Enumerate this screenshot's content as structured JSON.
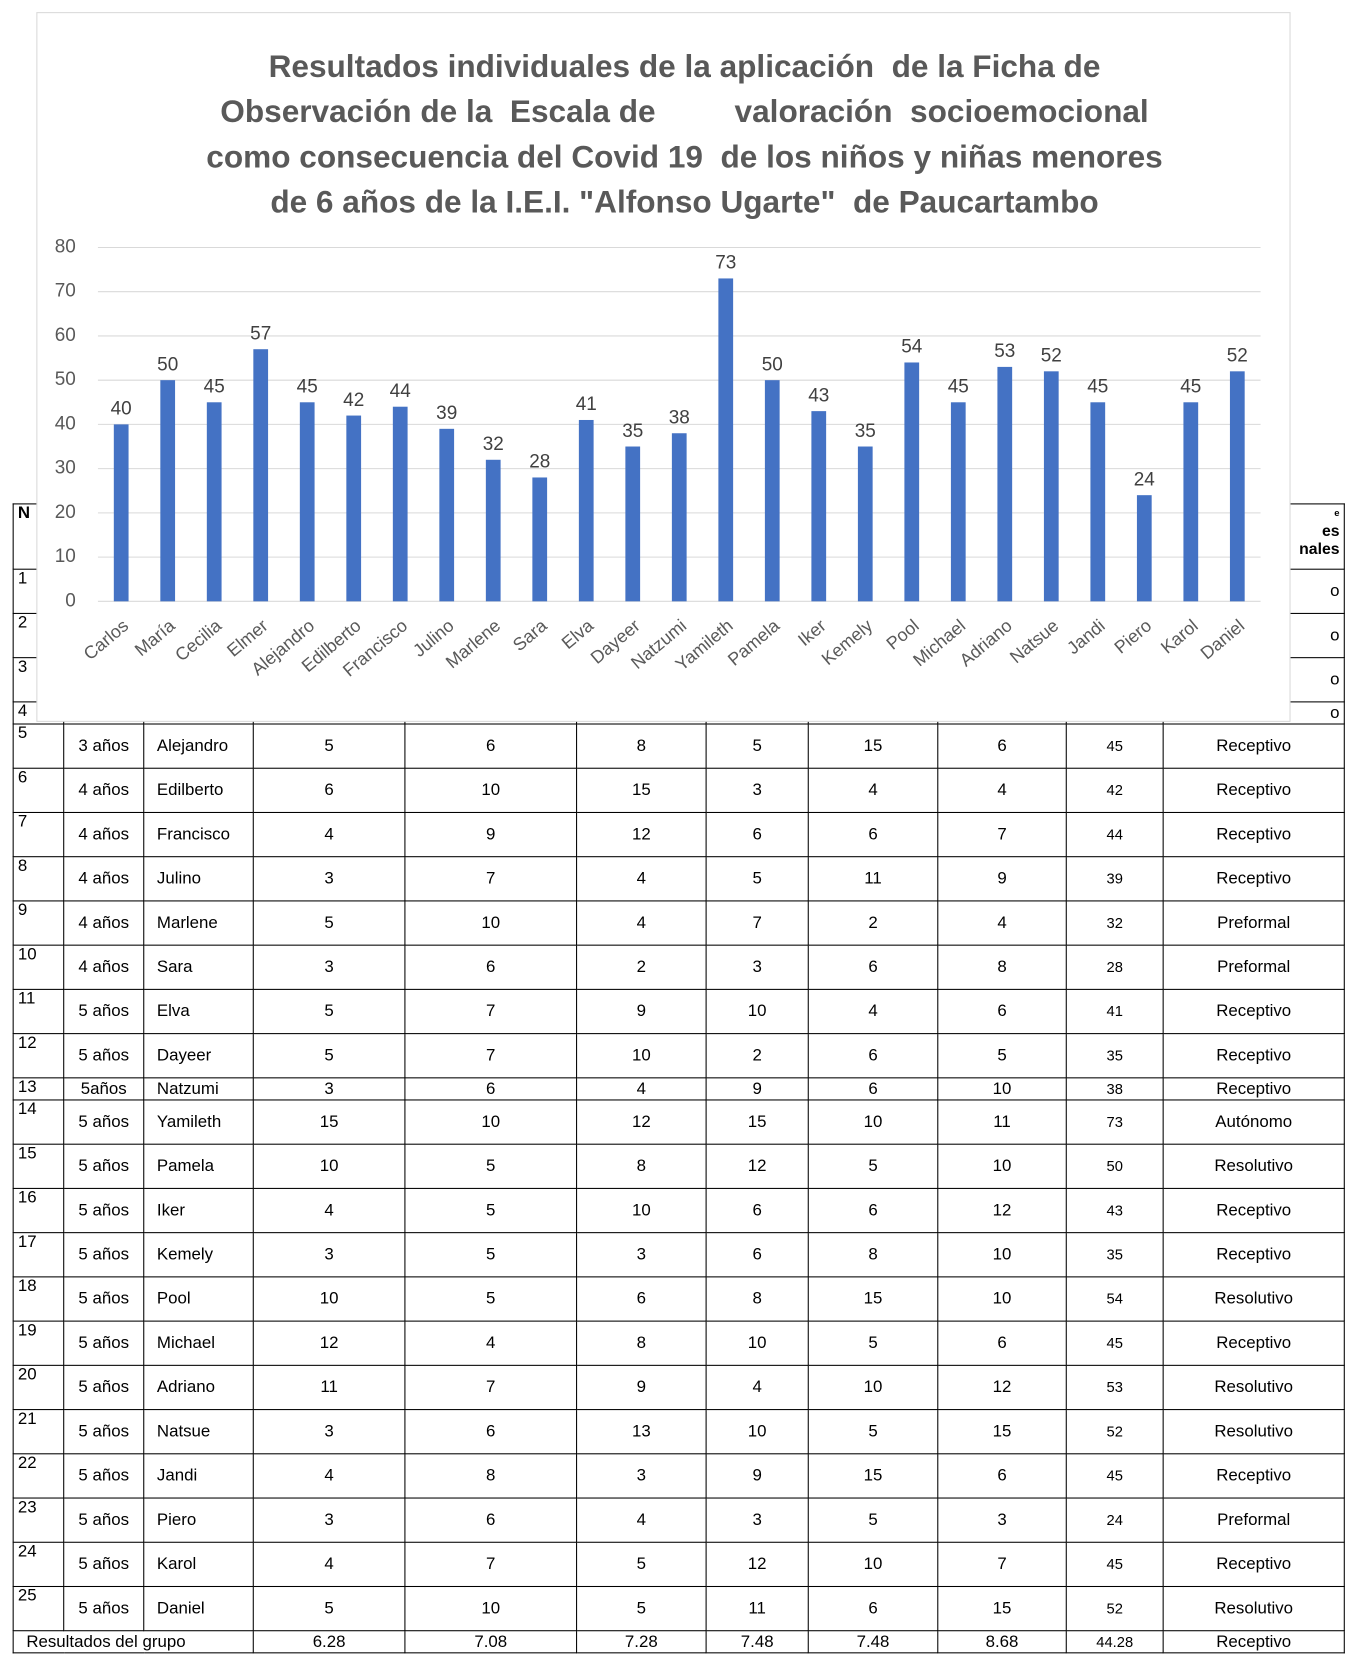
{
  "chart_data": {
    "type": "bar",
    "title_lines": [
      "Resultados individuales de la aplicación  de la Ficha de",
      "Observación de la  Escala de         valoración  socioemocional",
      "como consecuencia del Covid 19  de los niños y niñas menores",
      "de 6 años de la I.E.I. \"Alfonso Ugarte\"  de Paucartambo"
    ],
    "categories": [
      "Carlos",
      "María",
      "Cecilia",
      "Elmer",
      "Alejandro",
      "Edilberto",
      "Francisco",
      "Julino",
      "Marlene",
      "Sara",
      "Elva",
      "Dayeer",
      "Natzumi",
      "Yamileth",
      "Pamela",
      "Iker",
      "Kemely",
      "Pool",
      "Michael",
      "Adriano",
      "Natsue",
      "Jandi",
      "Piero",
      "Karol",
      "Daniel"
    ],
    "values": [
      40,
      50,
      45,
      57,
      45,
      42,
      44,
      39,
      32,
      28,
      41,
      35,
      38,
      73,
      50,
      43,
      35,
      54,
      45,
      53,
      52,
      45,
      24,
      45,
      52
    ],
    "color": "#4472c4",
    "ylim": [
      0,
      80
    ],
    "yticks": [
      0,
      10,
      20,
      30,
      40,
      50,
      60,
      70,
      80
    ],
    "grid": true
  },
  "table": {
    "header": {
      "first": "N",
      "last_lines": [
        "e",
        "es",
        "nales"
      ]
    },
    "partial_rows": [
      {
        "no": 1,
        "level": "o"
      },
      {
        "no": 2,
        "level": "o"
      },
      {
        "no": 3,
        "level": "o"
      },
      {
        "no": 4,
        "level": "o"
      }
    ],
    "rows": [
      [
        5,
        "3 años",
        "Alejandro",
        5,
        6,
        8,
        5,
        15,
        6,
        45,
        "Receptivo"
      ],
      [
        6,
        "4 años",
        "Edilberto",
        6,
        10,
        15,
        3,
        4,
        4,
        42,
        "Receptivo"
      ],
      [
        7,
        "4 años",
        "Francisco",
        4,
        9,
        12,
        6,
        6,
        7,
        44,
        "Receptivo"
      ],
      [
        8,
        "4 años",
        "Julino",
        3,
        7,
        4,
        5,
        11,
        9,
        39,
        "Receptivo"
      ],
      [
        9,
        "4 años",
        "Marlene",
        5,
        10,
        4,
        7,
        2,
        4,
        32,
        "Preformal"
      ],
      [
        10,
        "4 años",
        "Sara",
        3,
        6,
        2,
        3,
        6,
        8,
        28,
        "Preformal"
      ],
      [
        11,
        "5 años",
        "Elva",
        5,
        7,
        9,
        10,
        4,
        6,
        41,
        "Receptivo"
      ],
      [
        12,
        "5 años",
        "Dayeer",
        5,
        7,
        10,
        2,
        6,
        5,
        35,
        "Receptivo"
      ],
      [
        13,
        "5años",
        "Natzumi",
        3,
        6,
        4,
        9,
        6,
        10,
        38,
        "Receptivo"
      ],
      [
        14,
        "5 años",
        "Yamileth",
        15,
        10,
        12,
        15,
        10,
        11,
        73,
        "Autónomo"
      ],
      [
        15,
        "5 años",
        "Pamela",
        10,
        5,
        8,
        12,
        5,
        10,
        50,
        "Resolutivo"
      ],
      [
        16,
        "5 años",
        "Iker",
        4,
        5,
        10,
        6,
        6,
        12,
        43,
        "Receptivo"
      ],
      [
        17,
        "5 años",
        "Kemely",
        3,
        5,
        3,
        6,
        8,
        10,
        35,
        "Receptivo"
      ],
      [
        18,
        "5 años",
        "Pool",
        10,
        5,
        6,
        8,
        15,
        10,
        54,
        "Resolutivo"
      ],
      [
        19,
        "5 años",
        "Michael",
        12,
        4,
        8,
        10,
        5,
        6,
        45,
        "Receptivo"
      ],
      [
        20,
        "5 años",
        "Adriano",
        11,
        7,
        9,
        4,
        10,
        12,
        53,
        "Resolutivo"
      ],
      [
        21,
        "5 años",
        "Natsue",
        3,
        6,
        13,
        10,
        5,
        15,
        52,
        "Resolutivo"
      ],
      [
        22,
        "5 años",
        "Jandi",
        4,
        8,
        3,
        9,
        15,
        6,
        45,
        "Receptivo"
      ],
      [
        23,
        "5 años",
        "Piero",
        3,
        6,
        4,
        3,
        5,
        3,
        24,
        "Preformal"
      ],
      [
        24,
        "5 años",
        "Karol",
        4,
        7,
        5,
        12,
        10,
        7,
        45,
        "Receptivo"
      ],
      [
        25,
        "5 años",
        "Daniel",
        5,
        10,
        5,
        11,
        6,
        15,
        52,
        "Resolutivo"
      ]
    ],
    "summary": {
      "label": "Resultados del grupo",
      "values": [
        6.28,
        7.08,
        7.28,
        7.48,
        7.48,
        8.68,
        44.28
      ],
      "level": "Receptivo"
    }
  }
}
